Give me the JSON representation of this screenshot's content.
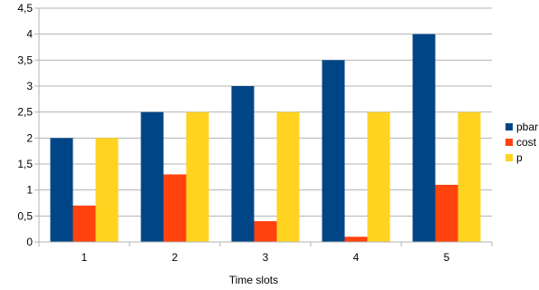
{
  "chart_data": {
    "type": "bar",
    "title": "",
    "xlabel": "Time slots",
    "ylabel": "",
    "categories": [
      "1",
      "2",
      "3",
      "4",
      "5"
    ],
    "series": [
      {
        "name": "pbar",
        "color": "#004586",
        "values": [
          2,
          2.5,
          3,
          3.5,
          4
        ]
      },
      {
        "name": "cost",
        "color": "#ff420e",
        "values": [
          0.7,
          1.3,
          0.4,
          0.1,
          1.1
        ]
      },
      {
        "name": "p",
        "color": "#ffd320",
        "values": [
          2,
          2.5,
          2.5,
          2.5,
          2.5
        ]
      }
    ],
    "ylim": [
      0,
      4.5
    ],
    "yticks": [
      "0",
      "0,5",
      "1",
      "1,5",
      "2",
      "2,5",
      "3",
      "3,5",
      "4",
      "4,5"
    ],
    "grid": true,
    "legend_position": "right"
  }
}
